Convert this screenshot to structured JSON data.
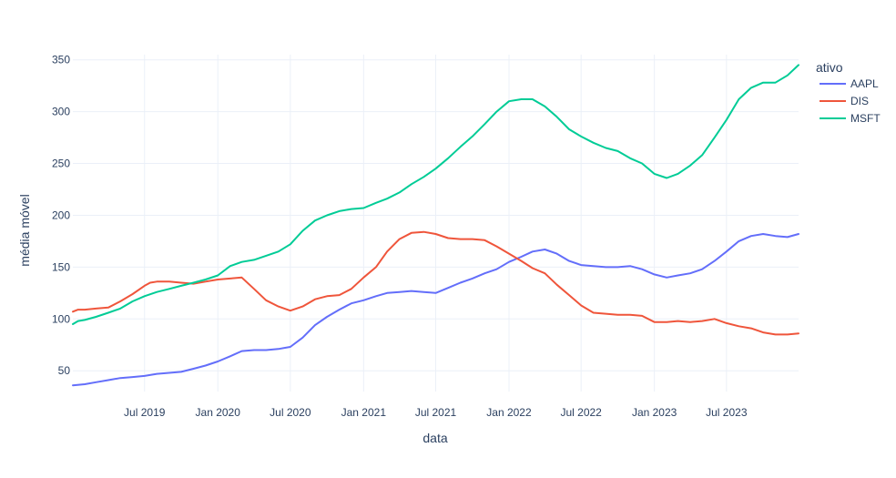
{
  "chart_data": {
    "type": "line",
    "title": "",
    "xlabel": "data",
    "ylabel": "média móvel",
    "x_range": [
      "2019-01-02",
      "2023-12-29"
    ],
    "ylim": [
      30,
      355
    ],
    "grid": true,
    "legend": {
      "title": "ativo",
      "position": "top-right outside"
    },
    "x_ticks": [
      {
        "date": "2019-07-01",
        "label": "Jul 2019"
      },
      {
        "date": "2020-01-01",
        "label": "Jan 2020"
      },
      {
        "date": "2020-07-01",
        "label": "Jul 2020"
      },
      {
        "date": "2021-01-01",
        "label": "Jan 2021"
      },
      {
        "date": "2021-07-01",
        "label": "Jul 2021"
      },
      {
        "date": "2022-01-01",
        "label": "Jan 2022"
      },
      {
        "date": "2022-07-01",
        "label": "Jul 2022"
      },
      {
        "date": "2023-01-01",
        "label": "Jan 2023"
      },
      {
        "date": "2023-07-01",
        "label": "Jul 2023"
      }
    ],
    "y_ticks": [
      50,
      100,
      150,
      200,
      250,
      300,
      350
    ],
    "series": [
      {
        "name": "AAPL",
        "color": "#636efa",
        "points": [
          [
            "2019-01-02",
            36
          ],
          [
            "2019-02-01",
            37
          ],
          [
            "2019-03-01",
            39
          ],
          [
            "2019-04-01",
            41
          ],
          [
            "2019-05-01",
            43
          ],
          [
            "2019-06-01",
            44
          ],
          [
            "2019-07-01",
            45
          ],
          [
            "2019-08-01",
            47
          ],
          [
            "2019-09-01",
            48
          ],
          [
            "2019-10-01",
            49
          ],
          [
            "2019-11-01",
            52
          ],
          [
            "2019-12-01",
            55
          ],
          [
            "2020-01-01",
            59
          ],
          [
            "2020-02-01",
            64
          ],
          [
            "2020-03-01",
            69
          ],
          [
            "2020-04-01",
            70
          ],
          [
            "2020-05-01",
            70
          ],
          [
            "2020-06-01",
            71
          ],
          [
            "2020-07-01",
            73
          ],
          [
            "2020-08-01",
            82
          ],
          [
            "2020-09-01",
            94
          ],
          [
            "2020-10-01",
            102
          ],
          [
            "2020-11-01",
            109
          ],
          [
            "2020-12-01",
            115
          ],
          [
            "2021-01-01",
            118
          ],
          [
            "2021-02-01",
            122
          ],
          [
            "2021-03-01",
            125
          ],
          [
            "2021-04-01",
            126
          ],
          [
            "2021-05-01",
            127
          ],
          [
            "2021-06-01",
            126
          ],
          [
            "2021-07-01",
            125
          ],
          [
            "2021-08-01",
            130
          ],
          [
            "2021-09-01",
            135
          ],
          [
            "2021-10-01",
            139
          ],
          [
            "2021-11-01",
            144
          ],
          [
            "2021-12-01",
            148
          ],
          [
            "2022-01-01",
            155
          ],
          [
            "2022-02-01",
            160
          ],
          [
            "2022-03-01",
            165
          ],
          [
            "2022-04-01",
            167
          ],
          [
            "2022-05-01",
            163
          ],
          [
            "2022-06-01",
            156
          ],
          [
            "2022-07-01",
            152
          ],
          [
            "2022-08-01",
            151
          ],
          [
            "2022-09-01",
            150
          ],
          [
            "2022-10-01",
            150
          ],
          [
            "2022-11-01",
            151
          ],
          [
            "2022-12-01",
            148
          ],
          [
            "2023-01-01",
            143
          ],
          [
            "2023-02-01",
            140
          ],
          [
            "2023-03-01",
            142
          ],
          [
            "2023-04-01",
            144
          ],
          [
            "2023-05-01",
            148
          ],
          [
            "2023-06-01",
            156
          ],
          [
            "2023-07-01",
            165
          ],
          [
            "2023-08-01",
            175
          ],
          [
            "2023-09-01",
            180
          ],
          [
            "2023-10-01",
            182
          ],
          [
            "2023-11-01",
            180
          ],
          [
            "2023-12-01",
            179
          ],
          [
            "2023-12-29",
            182
          ]
        ]
      },
      {
        "name": "DIS",
        "color": "#ef553b",
        "points": [
          [
            "2019-01-02",
            107
          ],
          [
            "2019-01-15",
            109
          ],
          [
            "2019-02-01",
            109
          ],
          [
            "2019-03-01",
            110
          ],
          [
            "2019-04-01",
            111
          ],
          [
            "2019-05-01",
            117
          ],
          [
            "2019-06-01",
            124
          ],
          [
            "2019-07-01",
            132
          ],
          [
            "2019-07-15",
            135
          ],
          [
            "2019-08-01",
            136
          ],
          [
            "2019-09-01",
            136
          ],
          [
            "2019-10-01",
            135
          ],
          [
            "2019-11-01",
            134
          ],
          [
            "2019-12-01",
            136
          ],
          [
            "2020-01-01",
            138
          ],
          [
            "2020-02-01",
            139
          ],
          [
            "2020-03-01",
            140
          ],
          [
            "2020-04-01",
            129
          ],
          [
            "2020-05-01",
            118
          ],
          [
            "2020-06-01",
            112
          ],
          [
            "2020-07-01",
            108
          ],
          [
            "2020-08-01",
            112
          ],
          [
            "2020-09-01",
            119
          ],
          [
            "2020-10-01",
            122
          ],
          [
            "2020-11-01",
            123
          ],
          [
            "2020-12-01",
            129
          ],
          [
            "2021-01-01",
            140
          ],
          [
            "2021-02-01",
            150
          ],
          [
            "2021-03-01",
            165
          ],
          [
            "2021-04-01",
            177
          ],
          [
            "2021-05-01",
            183
          ],
          [
            "2021-06-01",
            184
          ],
          [
            "2021-07-01",
            182
          ],
          [
            "2021-08-01",
            178
          ],
          [
            "2021-09-01",
            177
          ],
          [
            "2021-10-01",
            177
          ],
          [
            "2021-11-01",
            176
          ],
          [
            "2021-12-01",
            170
          ],
          [
            "2022-01-01",
            163
          ],
          [
            "2022-02-01",
            156
          ],
          [
            "2022-03-01",
            149
          ],
          [
            "2022-04-01",
            144
          ],
          [
            "2022-05-01",
            133
          ],
          [
            "2022-06-01",
            123
          ],
          [
            "2022-07-01",
            113
          ],
          [
            "2022-08-01",
            106
          ],
          [
            "2022-09-01",
            105
          ],
          [
            "2022-10-01",
            104
          ],
          [
            "2022-11-01",
            104
          ],
          [
            "2022-12-01",
            103
          ],
          [
            "2023-01-01",
            97
          ],
          [
            "2023-02-01",
            97
          ],
          [
            "2023-03-01",
            98
          ],
          [
            "2023-04-01",
            97
          ],
          [
            "2023-05-01",
            98
          ],
          [
            "2023-06-01",
            100
          ],
          [
            "2023-07-01",
            96
          ],
          [
            "2023-08-01",
            93
          ],
          [
            "2023-09-01",
            91
          ],
          [
            "2023-10-01",
            87
          ],
          [
            "2023-11-01",
            85
          ],
          [
            "2023-12-01",
            85
          ],
          [
            "2023-12-29",
            86
          ]
        ]
      },
      {
        "name": "MSFT",
        "color": "#00cc96",
        "points": [
          [
            "2019-01-02",
            95
          ],
          [
            "2019-01-15",
            98
          ],
          [
            "2019-02-01",
            99
          ],
          [
            "2019-03-01",
            102
          ],
          [
            "2019-04-01",
            106
          ],
          [
            "2019-05-01",
            110
          ],
          [
            "2019-06-01",
            117
          ],
          [
            "2019-07-01",
            122
          ],
          [
            "2019-08-01",
            126
          ],
          [
            "2019-09-01",
            129
          ],
          [
            "2019-10-01",
            132
          ],
          [
            "2019-11-01",
            135
          ],
          [
            "2019-12-01",
            138
          ],
          [
            "2020-01-01",
            142
          ],
          [
            "2020-02-01",
            151
          ],
          [
            "2020-03-01",
            155
          ],
          [
            "2020-04-01",
            157
          ],
          [
            "2020-05-01",
            161
          ],
          [
            "2020-06-01",
            165
          ],
          [
            "2020-07-01",
            172
          ],
          [
            "2020-08-01",
            185
          ],
          [
            "2020-09-01",
            195
          ],
          [
            "2020-10-01",
            200
          ],
          [
            "2020-11-01",
            204
          ],
          [
            "2020-12-01",
            206
          ],
          [
            "2021-01-01",
            207
          ],
          [
            "2021-02-01",
            212
          ],
          [
            "2021-03-01",
            216
          ],
          [
            "2021-04-01",
            222
          ],
          [
            "2021-05-01",
            230
          ],
          [
            "2021-06-01",
            237
          ],
          [
            "2021-07-01",
            245
          ],
          [
            "2021-08-01",
            255
          ],
          [
            "2021-09-01",
            266
          ],
          [
            "2021-10-01",
            276
          ],
          [
            "2021-11-01",
            288
          ],
          [
            "2021-12-01",
            300
          ],
          [
            "2022-01-01",
            310
          ],
          [
            "2022-02-01",
            312
          ],
          [
            "2022-03-01",
            312
          ],
          [
            "2022-04-01",
            305
          ],
          [
            "2022-05-01",
            295
          ],
          [
            "2022-06-01",
            283
          ],
          [
            "2022-07-01",
            276
          ],
          [
            "2022-08-01",
            270
          ],
          [
            "2022-09-01",
            265
          ],
          [
            "2022-10-01",
            262
          ],
          [
            "2022-11-01",
            255
          ],
          [
            "2022-12-01",
            250
          ],
          [
            "2023-01-01",
            240
          ],
          [
            "2023-02-01",
            236
          ],
          [
            "2023-03-01",
            240
          ],
          [
            "2023-04-01",
            248
          ],
          [
            "2023-05-01",
            258
          ],
          [
            "2023-06-01",
            275
          ],
          [
            "2023-07-01",
            292
          ],
          [
            "2023-08-01",
            312
          ],
          [
            "2023-09-01",
            323
          ],
          [
            "2023-10-01",
            328
          ],
          [
            "2023-11-01",
            328
          ],
          [
            "2023-12-01",
            335
          ],
          [
            "2023-12-29",
            345
          ]
        ]
      }
    ]
  }
}
